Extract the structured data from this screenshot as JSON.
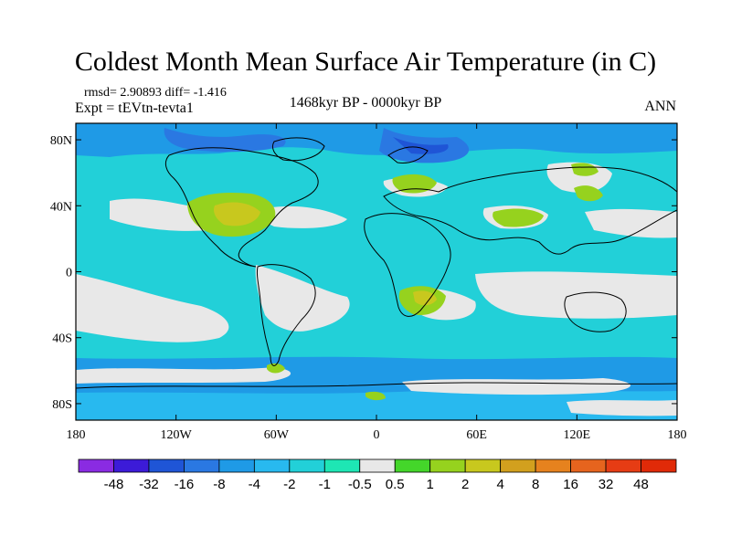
{
  "map": {
    "title": "Coldest Month Mean Surface Air Temperature (in C)",
    "stats_line": "rmsd= 2.90893  diff= -1.416",
    "experiment": "Expt = tEVtn-tevta1",
    "period": "1468kyr BP - 0000kyr BP",
    "season": "ANN",
    "lat_labels": [
      "80N",
      "40N",
      "0",
      "40S",
      "80S"
    ],
    "lat_values": [
      80,
      40,
      0,
      -40,
      -80
    ],
    "lon_labels": [
      "180",
      "120W",
      "60W",
      "0",
      "60E",
      "120E",
      "180"
    ],
    "lon_values": [
      -180,
      -120,
      -60,
      0,
      60,
      120,
      180
    ],
    "lon_range": [
      -180,
      180
    ],
    "lat_range": [
      -90,
      90
    ]
  },
  "colorbar": {
    "labels": [
      "-48",
      "-32",
      "-16",
      "-8",
      "-4",
      "-2",
      "-1",
      "-0.5",
      "0.5",
      "1",
      "2",
      "4",
      "8",
      "16",
      "32",
      "48"
    ],
    "colors": [
      "#8a2be2",
      "#3c1bd8",
      "#1f55d6",
      "#2a78e2",
      "#1f9ae6",
      "#28b9ef",
      "#22d0d8",
      "#1ee6b4",
      "#e8e8e8",
      "#44d62a",
      "#96d21e",
      "#c8c81e",
      "#d2a01e",
      "#e6821e",
      "#e6641e",
      "#e63c14",
      "#e02a08"
    ]
  }
}
